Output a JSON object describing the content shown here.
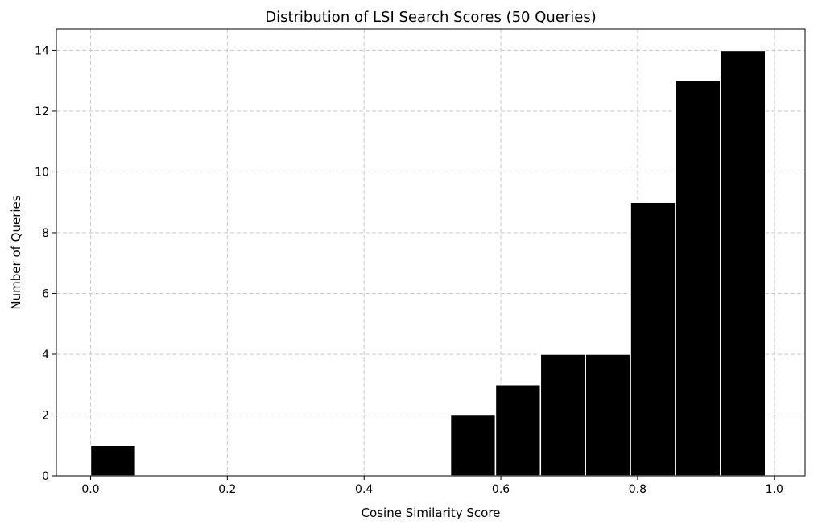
{
  "chart_data": {
    "type": "bar",
    "title": "Distribution of LSI Search Scores (50 Queries)",
    "xlabel": "Cosine Similarity Score",
    "ylabel": "Number of Queries",
    "xlim": [
      -0.05,
      1.045
    ],
    "ylim": [
      0,
      14.7
    ],
    "x_ticks": [
      0.0,
      0.2,
      0.4,
      0.6,
      0.8,
      1.0
    ],
    "x_tick_labels": [
      "0.0",
      "0.2",
      "0.4",
      "0.6",
      "0.8",
      "1.0"
    ],
    "y_ticks": [
      0,
      2,
      4,
      6,
      8,
      10,
      12,
      14
    ],
    "y_tick_labels": [
      "0",
      "2",
      "4",
      "6",
      "8",
      "10",
      "12",
      "14"
    ],
    "grid": true,
    "bars": [
      {
        "x0": 0.0,
        "x1": 0.0658,
        "value": 1
      },
      {
        "x0": 0.0658,
        "x1": 0.1316,
        "value": 0
      },
      {
        "x0": 0.1316,
        "x1": 0.1974,
        "value": 0
      },
      {
        "x0": 0.1974,
        "x1": 0.2632,
        "value": 0
      },
      {
        "x0": 0.2632,
        "x1": 0.329,
        "value": 0
      },
      {
        "x0": 0.329,
        "x1": 0.3948,
        "value": 0
      },
      {
        "x0": 0.3948,
        "x1": 0.4606,
        "value": 0
      },
      {
        "x0": 0.4606,
        "x1": 0.5264,
        "value": 0
      },
      {
        "x0": 0.5264,
        "x1": 0.5922,
        "value": 2
      },
      {
        "x0": 0.5922,
        "x1": 0.658,
        "value": 3
      },
      {
        "x0": 0.658,
        "x1": 0.7238,
        "value": 4
      },
      {
        "x0": 0.7238,
        "x1": 0.7896,
        "value": 4
      },
      {
        "x0": 0.7896,
        "x1": 0.8554,
        "value": 9
      },
      {
        "x0": 0.8554,
        "x1": 0.9212,
        "value": 13
      },
      {
        "x0": 0.9212,
        "x1": 0.987,
        "value": 14
      }
    ],
    "colors": {
      "bar": "#000000",
      "bar_edge": "#ffffff",
      "grid": "#c8c8c8",
      "axes": "#000000"
    }
  }
}
